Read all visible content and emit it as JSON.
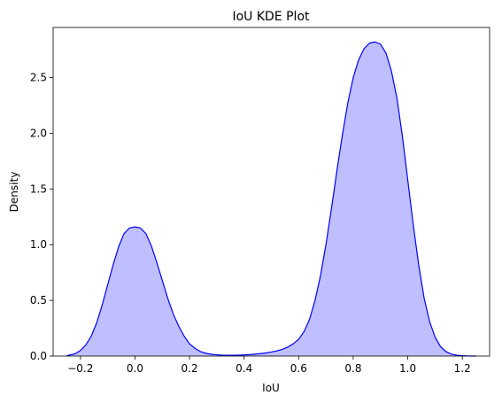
{
  "chart_data": {
    "type": "area",
    "title": "IoU KDE Plot",
    "xlabel": "IoU",
    "ylabel": "Density",
    "xlim": [
      -0.3,
      1.3
    ],
    "ylim": [
      0,
      2.95
    ],
    "xticks": [
      -0.2,
      0.0,
      0.2,
      0.4,
      0.6,
      0.8,
      1.0,
      1.2
    ],
    "xtick_labels": [
      "−0.2",
      "0.0",
      "0.2",
      "0.4",
      "0.6",
      "0.8",
      "1.0",
      "1.2"
    ],
    "yticks": [
      0.0,
      0.5,
      1.0,
      1.5,
      2.0,
      2.5
    ],
    "ytick_labels": [
      "0.0",
      "0.5",
      "1.0",
      "1.5",
      "2.0",
      "2.5"
    ],
    "grid": false,
    "legend": "none",
    "line_color": "#0000ff",
    "fill_color": "#bfbfff",
    "series": [
      {
        "x": [
          -0.25,
          -0.22,
          -0.2,
          -0.18,
          -0.16,
          -0.14,
          -0.12,
          -0.1,
          -0.08,
          -0.06,
          -0.04,
          -0.02,
          0.0,
          0.02,
          0.04,
          0.06,
          0.08,
          0.1,
          0.12,
          0.14,
          0.16,
          0.18,
          0.2,
          0.22,
          0.24,
          0.26,
          0.28,
          0.3,
          0.32,
          0.34,
          0.36,
          0.38,
          0.4,
          0.42,
          0.44,
          0.46,
          0.48,
          0.5,
          0.52,
          0.54,
          0.56,
          0.58,
          0.6,
          0.62,
          0.64,
          0.66,
          0.68,
          0.7,
          0.72,
          0.74,
          0.76,
          0.78,
          0.8,
          0.82,
          0.84,
          0.86,
          0.88,
          0.9,
          0.92,
          0.94,
          0.96,
          0.98,
          1.0,
          1.02,
          1.04,
          1.06,
          1.08,
          1.1,
          1.12,
          1.14,
          1.16,
          1.18,
          1.2,
          1.22,
          1.25
        ],
        "y": [
          0.003,
          0.02,
          0.05,
          0.1,
          0.18,
          0.3,
          0.46,
          0.64,
          0.82,
          0.98,
          1.1,
          1.15,
          1.16,
          1.15,
          1.1,
          0.99,
          0.84,
          0.68,
          0.52,
          0.38,
          0.27,
          0.18,
          0.11,
          0.07,
          0.04,
          0.025,
          0.016,
          0.011,
          0.008,
          0.007,
          0.007,
          0.008,
          0.01,
          0.013,
          0.017,
          0.022,
          0.028,
          0.036,
          0.046,
          0.06,
          0.08,
          0.11,
          0.15,
          0.22,
          0.33,
          0.5,
          0.72,
          1.0,
          1.32,
          1.66,
          1.98,
          2.27,
          2.5,
          2.66,
          2.76,
          2.81,
          2.82,
          2.8,
          2.72,
          2.56,
          2.32,
          1.98,
          1.58,
          1.18,
          0.82,
          0.52,
          0.31,
          0.17,
          0.085,
          0.04,
          0.017,
          0.007,
          0.003,
          0.001,
          0.0
        ]
      }
    ]
  }
}
